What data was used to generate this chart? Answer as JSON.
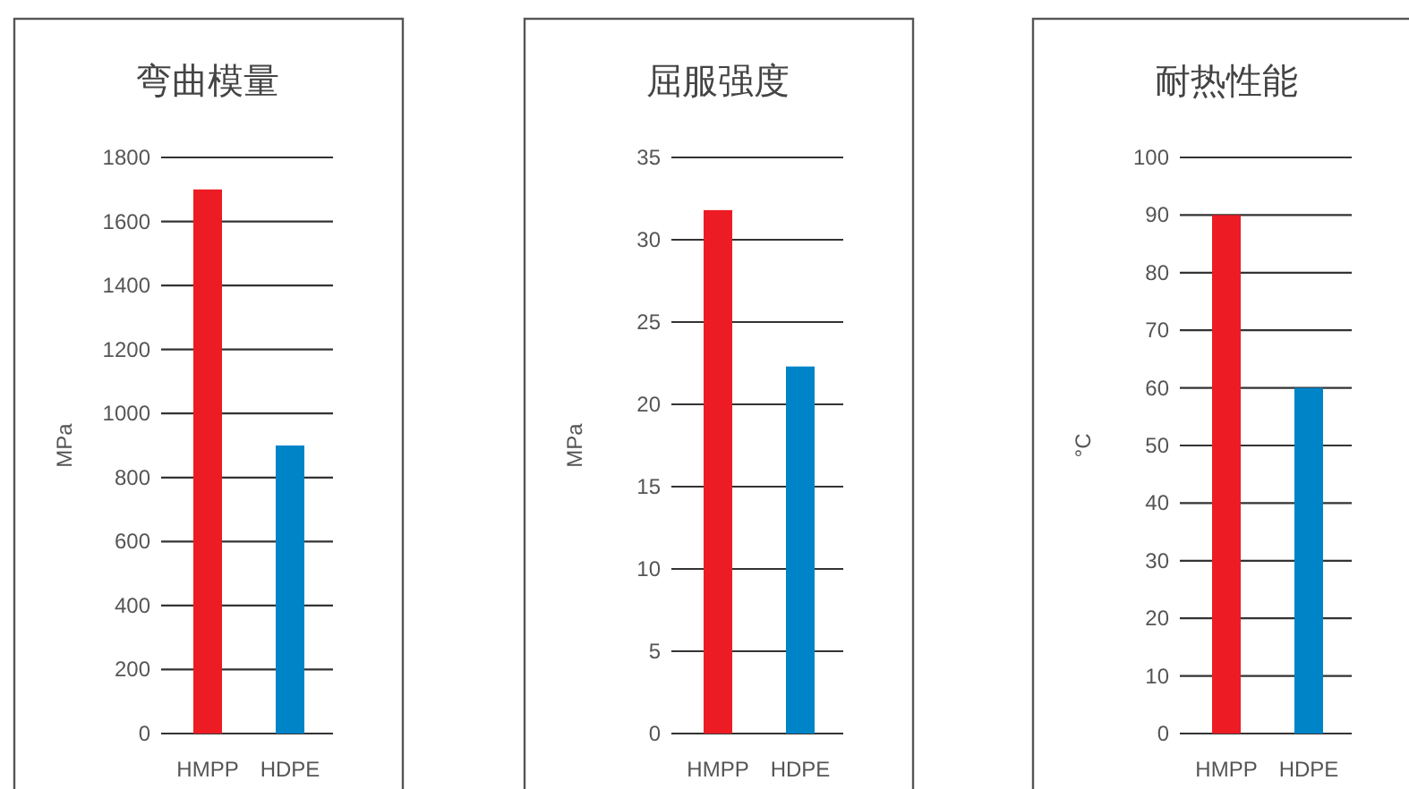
{
  "chart_data": [
    {
      "type": "bar",
      "title": "弯曲模量",
      "ylabel": "MPa",
      "categories": [
        "HMPP",
        "HDPE"
      ],
      "values": [
        1700,
        900
      ],
      "colors": [
        "#ed1c24",
        "#0084c8"
      ],
      "ylim": [
        0,
        1800
      ],
      "yticks": [
        0,
        200,
        400,
        600,
        800,
        1000,
        1200,
        1400,
        1600,
        1800
      ],
      "grid": "y"
    },
    {
      "type": "bar",
      "title": "屈服强度",
      "ylabel": "MPa",
      "categories": [
        "HMPP",
        "HDPE"
      ],
      "values": [
        31.8,
        22.3
      ],
      "colors": [
        "#ed1c24",
        "#0084c8"
      ],
      "ylim": [
        0,
        35
      ],
      "yticks": [
        0,
        5,
        10,
        15,
        20,
        25,
        30,
        35
      ],
      "grid": "y"
    },
    {
      "type": "bar",
      "title": "耐热性能",
      "ylabel": "°C",
      "categories": [
        "HMPP",
        "HDPE"
      ],
      "values": [
        90,
        60
      ],
      "colors": [
        "#ed1c24",
        "#0084c8"
      ],
      "ylim": [
        0,
        100
      ],
      "yticks": [
        0,
        10,
        20,
        30,
        40,
        50,
        60,
        70,
        80,
        90,
        100
      ],
      "grid": "y"
    }
  ]
}
